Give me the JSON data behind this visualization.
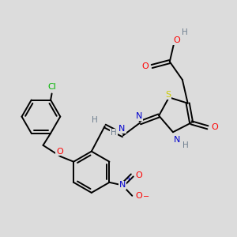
{
  "bg_color": "#dcdcdc",
  "atom_colors": {
    "C": "#000000",
    "H": "#708090",
    "O": "#ff0000",
    "N": "#0000cd",
    "S": "#cccc00",
    "Cl": "#00b400"
  },
  "bond_color": "#000000",
  "lw": 1.4,
  "fontsize": 7.5
}
